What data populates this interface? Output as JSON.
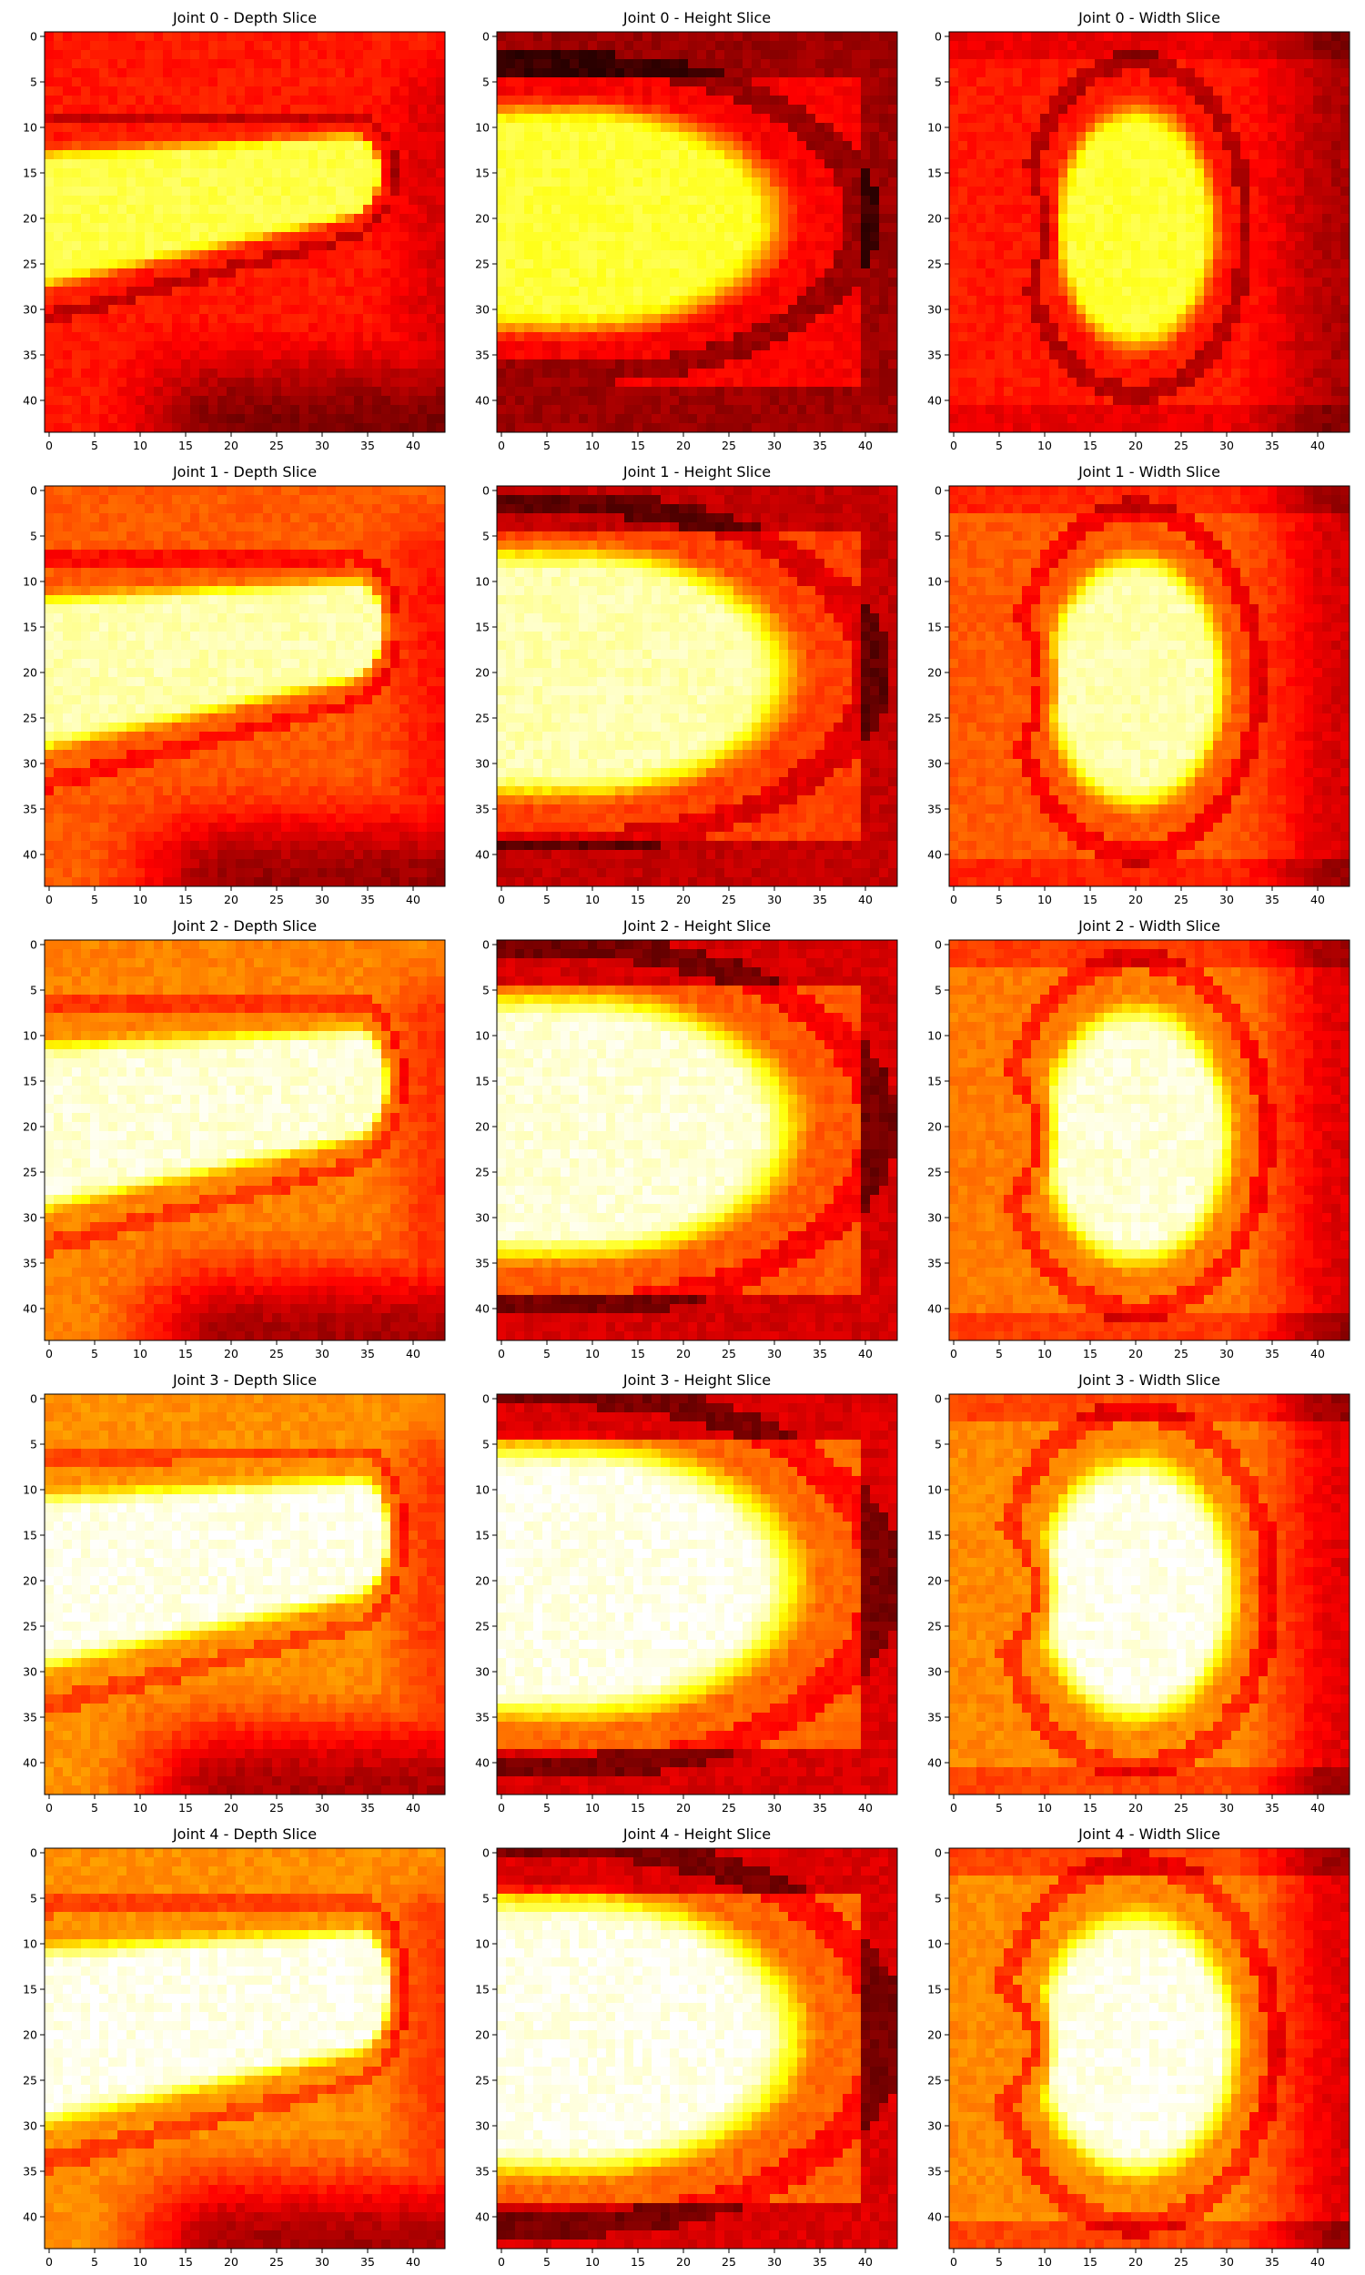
{
  "chart_data": {
    "type": "heatmap",
    "colormap": "hot",
    "grid": false,
    "grid_size": [
      44,
      44
    ],
    "axis_range": {
      "x": [
        0,
        43
      ],
      "y": [
        0,
        43
      ]
    },
    "x_ticks": [
      "0",
      "5",
      "10",
      "15",
      "20",
      "25",
      "30",
      "35",
      "40"
    ],
    "y_ticks": [
      "0",
      "5",
      "10",
      "15",
      "20",
      "25",
      "30",
      "35",
      "40"
    ],
    "shape_note": "Each panel shows a bright yellow-white blob on a red/dark-red background; intensity values estimated from colour (0 = black, 1 = white in the hot colormap).",
    "panels": [
      {
        "title": "Joint 0 - Depth Slice",
        "joint": 0,
        "view": "depth",
        "peak": 0.82,
        "background": 0.4,
        "edge_low": 0.18,
        "spread": 0.0
      },
      {
        "title": "Joint 0 - Height Slice",
        "joint": 0,
        "view": "height",
        "peak": 0.8,
        "background": 0.36,
        "edge_low": 0.15,
        "spread": 0.0
      },
      {
        "title": "Joint 0 - Width Slice",
        "joint": 0,
        "view": "width",
        "peak": 0.8,
        "background": 0.4,
        "edge_low": 0.18,
        "spread": 0.0
      },
      {
        "title": "Joint 1 - Depth Slice",
        "joint": 1,
        "view": "depth",
        "peak": 0.92,
        "background": 0.5,
        "edge_low": 0.22,
        "spread": 0.04
      },
      {
        "title": "Joint 1 - Height Slice",
        "joint": 1,
        "view": "height",
        "peak": 0.92,
        "background": 0.46,
        "edge_low": 0.18,
        "spread": 0.04
      },
      {
        "title": "Joint 1 - Width Slice",
        "joint": 1,
        "view": "width",
        "peak": 0.92,
        "background": 0.5,
        "edge_low": 0.22,
        "spread": 0.04
      },
      {
        "title": "Joint 2 - Depth Slice",
        "joint": 2,
        "view": "depth",
        "peak": 0.96,
        "background": 0.56,
        "edge_low": 0.24,
        "spread": 0.07
      },
      {
        "title": "Joint 2 - Height Slice",
        "joint": 2,
        "view": "height",
        "peak": 0.96,
        "background": 0.5,
        "edge_low": 0.2,
        "spread": 0.07
      },
      {
        "title": "Joint 2 - Width Slice",
        "joint": 2,
        "view": "width",
        "peak": 0.96,
        "background": 0.55,
        "edge_low": 0.22,
        "spread": 0.07
      },
      {
        "title": "Joint 3 - Depth Slice",
        "joint": 3,
        "view": "depth",
        "peak": 0.98,
        "background": 0.58,
        "edge_low": 0.24,
        "spread": 0.09
      },
      {
        "title": "Joint 3 - Height Slice",
        "joint": 3,
        "view": "height",
        "peak": 0.98,
        "background": 0.52,
        "edge_low": 0.2,
        "spread": 0.09
      },
      {
        "title": "Joint 3 - Width Slice",
        "joint": 3,
        "view": "width",
        "peak": 0.98,
        "background": 0.57,
        "edge_low": 0.22,
        "spread": 0.09
      },
      {
        "title": "Joint 4 - Depth Slice",
        "joint": 4,
        "view": "depth",
        "peak": 0.98,
        "background": 0.58,
        "edge_low": 0.24,
        "spread": 0.1
      },
      {
        "title": "Joint 4 - Height Slice",
        "joint": 4,
        "view": "height",
        "peak": 0.98,
        "background": 0.52,
        "edge_low": 0.2,
        "spread": 0.1
      },
      {
        "title": "Joint 4 - Width Slice",
        "joint": 4,
        "view": "width",
        "peak": 0.98,
        "background": 0.57,
        "edge_low": 0.22,
        "spread": 0.1
      }
    ]
  }
}
